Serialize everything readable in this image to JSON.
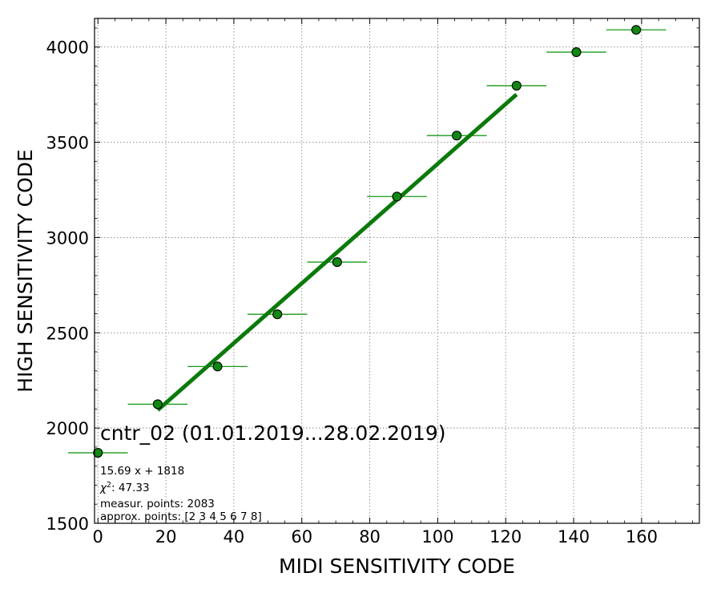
{
  "chart_data": {
    "type": "scatter",
    "xlabel": "MIDI SENSITIVITY CODE",
    "ylabel": "HIGH SENSITIVITY CODE",
    "xlim": [
      -1,
      177
    ],
    "ylim": [
      1500,
      4150
    ],
    "xticks": [
      0,
      20,
      40,
      60,
      80,
      100,
      120,
      140,
      160
    ],
    "yticks": [
      1500,
      2000,
      2500,
      3000,
      3500,
      4000
    ],
    "grid": true,
    "points": [
      {
        "x": 0,
        "y": 1870,
        "xerr": 8.8
      },
      {
        "x": 17.6,
        "y": 2125,
        "xerr": 8.8
      },
      {
        "x": 35.2,
        "y": 2323,
        "xerr": 8.8
      },
      {
        "x": 52.8,
        "y": 2597,
        "xerr": 8.8
      },
      {
        "x": 70.4,
        "y": 2871,
        "xerr": 8.8
      },
      {
        "x": 88.0,
        "y": 3215,
        "xerr": 8.8
      },
      {
        "x": 105.6,
        "y": 3535,
        "xerr": 8.8
      },
      {
        "x": 123.2,
        "y": 3797,
        "xerr": 8.8
      },
      {
        "x": 140.8,
        "y": 3973,
        "xerr": 8.8
      },
      {
        "x": 158.4,
        "y": 4090,
        "xerr": 8.8
      }
    ],
    "fit": {
      "slope": 15.69,
      "intercept": 1818,
      "x_range": [
        17.6,
        123.2
      ]
    },
    "colors": {
      "marker_fill": "#118811",
      "marker_edge": "#000000",
      "errorbar": "#1a9a1a",
      "fit_line": "#0a7a0a",
      "grid": "#888888"
    },
    "annotation": {
      "title": "cntr_02 (01.01.2019...28.02.2019)",
      "equation": "15.69 x + 1818",
      "chi2_symbol": "χ",
      "chi2_power": "2",
      "chi2_value": ": 47.33",
      "measured": "measur. points: 2083",
      "approx": "approx. points: [2 3 4 5 6 7 8]"
    }
  }
}
